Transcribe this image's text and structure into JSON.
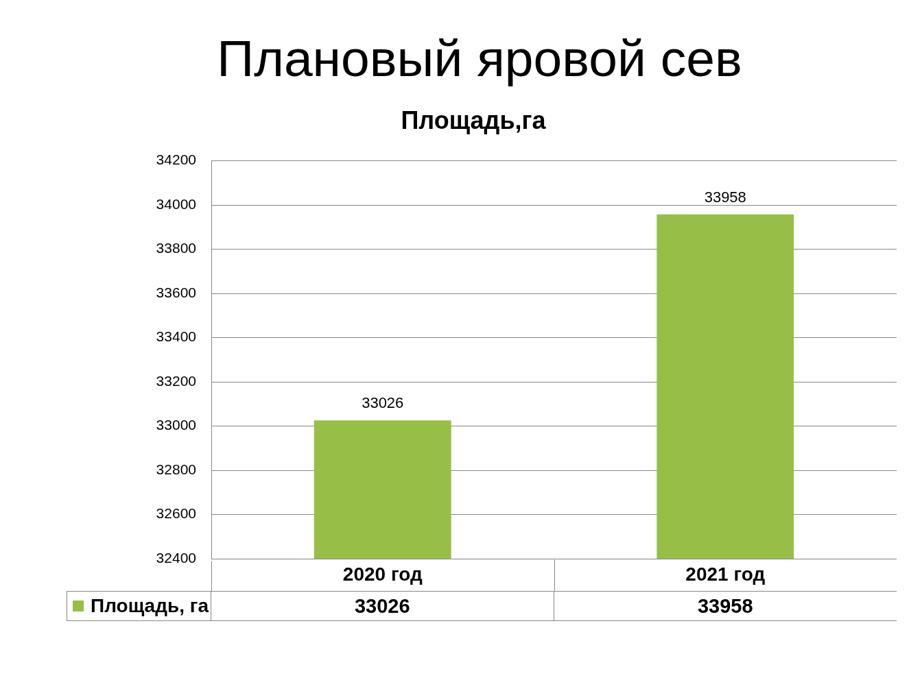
{
  "chart_data": {
    "type": "bar",
    "title": "Плановый яровой сев",
    "subtitle": "Площадь,га",
    "categories": [
      "2020 год",
      "2021 год"
    ],
    "series": [
      {
        "name": "Площадь, га",
        "color": "#97bf47",
        "values": [
          33026,
          33958
        ]
      }
    ],
    "ylim": [
      32400,
      34200
    ],
    "yticks": [
      32400,
      32600,
      32800,
      33000,
      33200,
      33400,
      33600,
      33800,
      34000,
      34200
    ],
    "grid": "y",
    "legend": "bottom",
    "data_labels": true,
    "annotations": [
      "33026",
      "33958"
    ]
  }
}
